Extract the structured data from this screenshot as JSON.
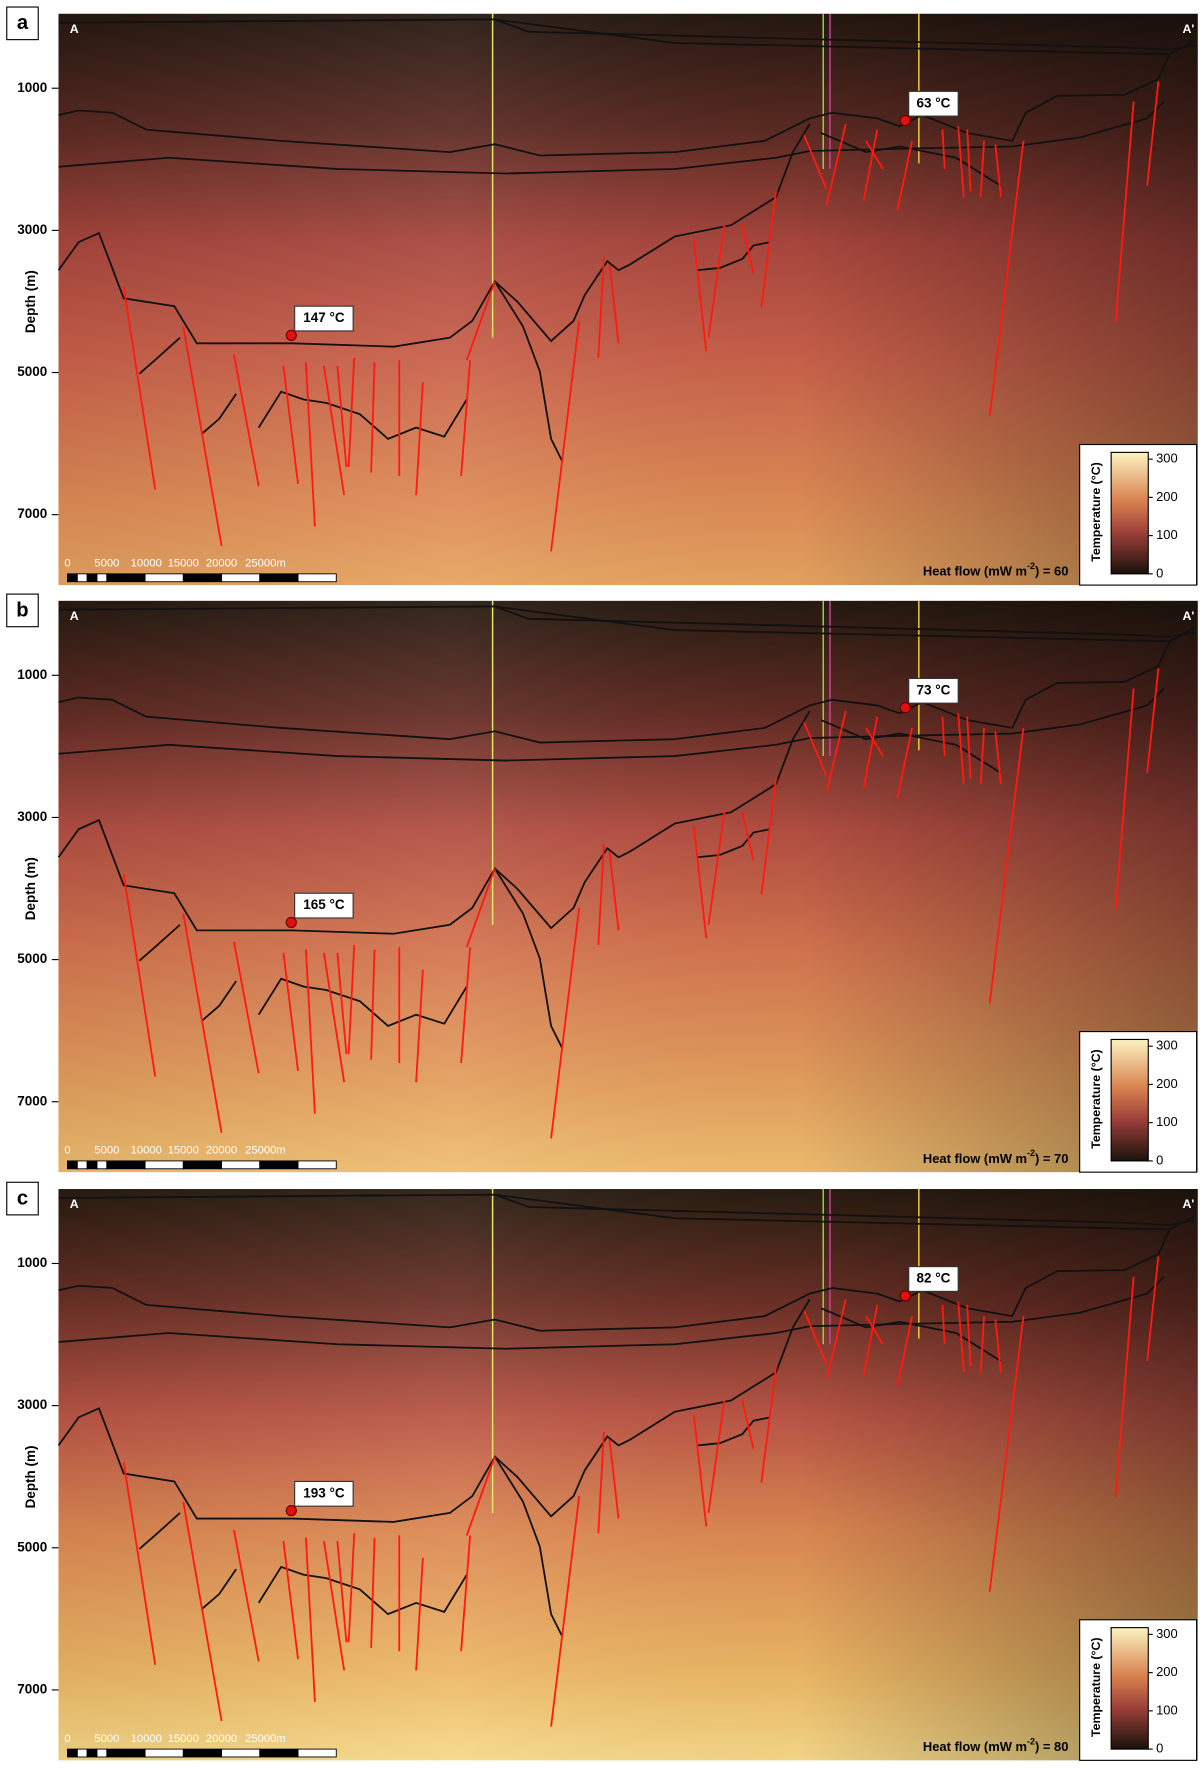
{
  "axis_label": "Depth (m)",
  "colorbar_label": "Temperature (°C)",
  "section_start": "A",
  "section_end": "A'",
  "depth_ticks": [
    1000,
    3000,
    5000,
    7000
  ],
  "colorbar_ticks": [
    0,
    100,
    200,
    300
  ],
  "scale_bar": [
    "0",
    "5000",
    "10000",
    "15000",
    "20000",
    "25000m"
  ],
  "panels": [
    {
      "label": "a",
      "shallow_temp": "63 °C",
      "deep_temp": "147 °C",
      "heat_flow": {
        "prefix": "Heat flow (mW m",
        "sup": "-2",
        "suffix": ") = 60"
      }
    },
    {
      "label": "b",
      "shallow_temp": "73 °C",
      "deep_temp": "165 °C",
      "heat_flow": {
        "prefix": "Heat flow (mW m",
        "sup": "-2",
        "suffix": ") = 70"
      }
    },
    {
      "label": "c",
      "shallow_temp": "82 °C",
      "deep_temp": "193 °C",
      "heat_flow": {
        "prefix": "Heat flow (mW m",
        "sup": "-2",
        "suffix": ") = 80"
      }
    }
  ]
}
